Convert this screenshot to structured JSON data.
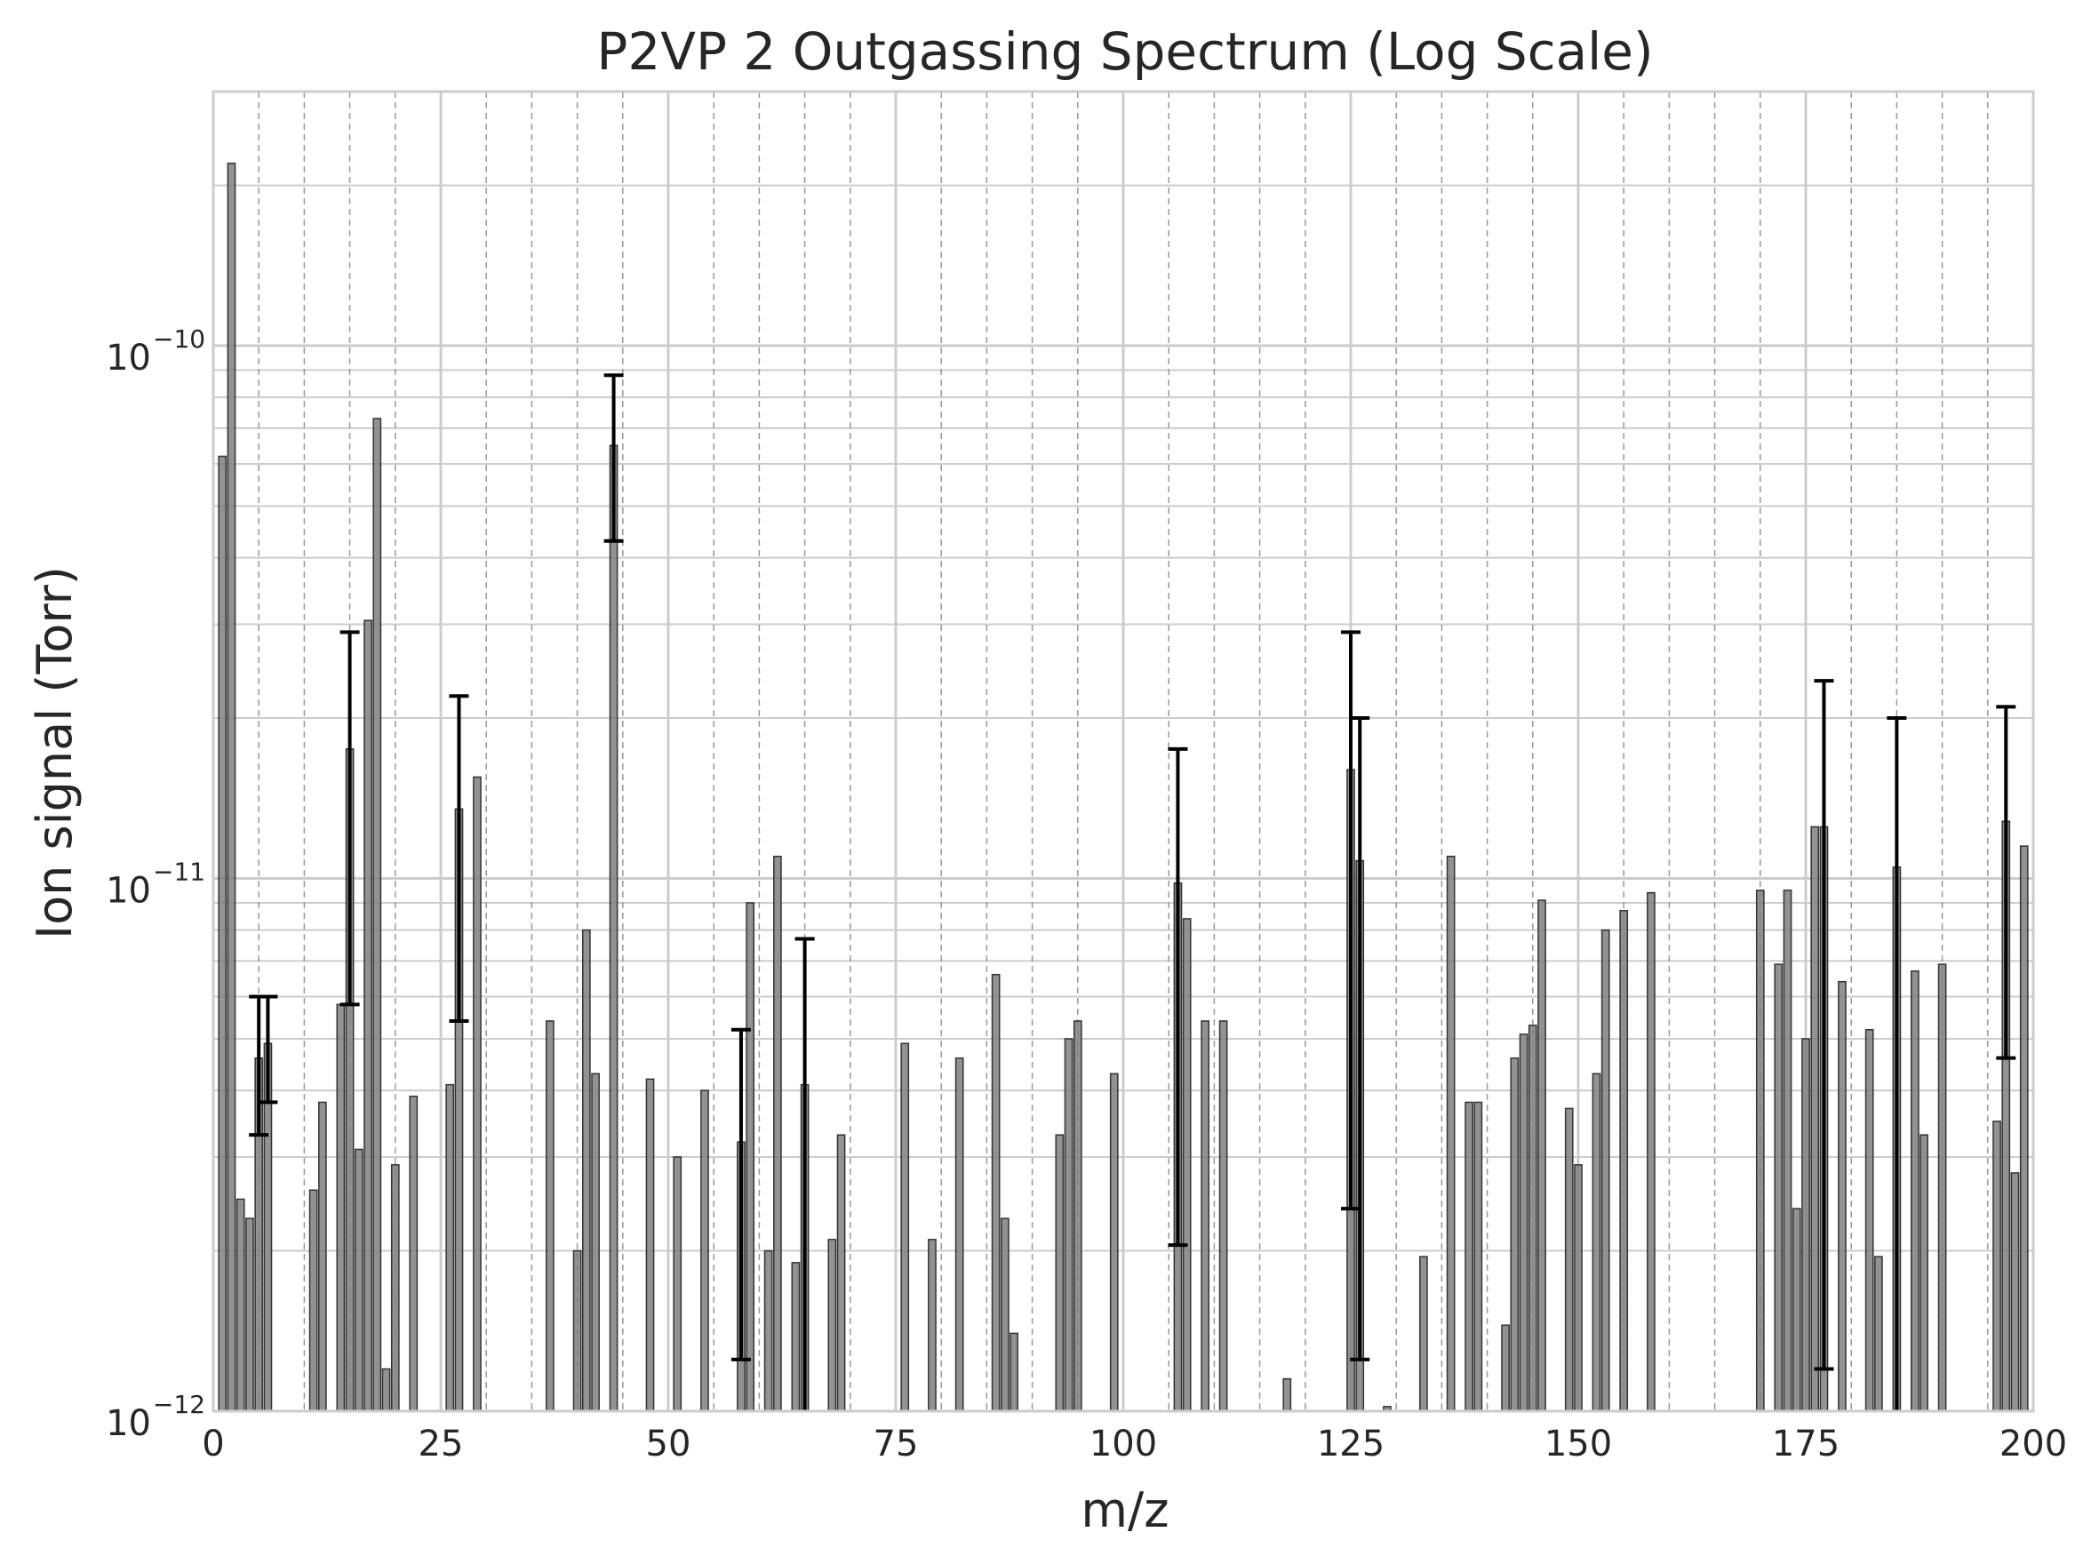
{
  "chart_data": {
    "type": "bar",
    "title": "P2VP 2 Outgassing Spectrum (Log Scale)",
    "xlabel": "m/z",
    "ylabel": "Ion signal (Torr)",
    "xlim": [
      0,
      200
    ],
    "ylim": [
      1e-12,
      3e-10
    ],
    "yscale": "log",
    "grid": true,
    "x_ticks": [
      0,
      25,
      50,
      75,
      100,
      125,
      150,
      175,
      200
    ],
    "y_ticks": [
      {
        "value": 1e-12,
        "base": "10",
        "exp": "−12"
      },
      {
        "value": 1e-11,
        "base": "10",
        "exp": "−11"
      },
      {
        "value": 1e-10,
        "base": "10",
        "exp": "−10"
      }
    ],
    "colors": {
      "bar": "#7f7f7f",
      "bar_edge": "#333333",
      "error_bar": "#000000",
      "grid": "#cccccc",
      "frame": "#cccccc"
    },
    "points": [
      {
        "x": 1,
        "y": 6.2e-11
      },
      {
        "x": 2,
        "y": 2.2e-10
      },
      {
        "x": 3,
        "y": 2.5e-12
      },
      {
        "x": 4,
        "y": 2.3e-12
      },
      {
        "x": 5,
        "y": 4.6e-12,
        "lo": 3.3e-12,
        "hi": 6e-12
      },
      {
        "x": 6,
        "y": 4.9e-12,
        "lo": 3.8e-12,
        "hi": 6e-12
      },
      {
        "x": 11,
        "y": 2.6e-12
      },
      {
        "x": 12,
        "y": 3.8e-12
      },
      {
        "x": 14,
        "y": 5.8e-12
      },
      {
        "x": 15,
        "y": 1.75e-11,
        "lo": 5.8e-12,
        "hi": 2.9e-11
      },
      {
        "x": 16,
        "y": 3.1e-12
      },
      {
        "x": 17,
        "y": 3.05e-11
      },
      {
        "x": 18,
        "y": 7.3e-11
      },
      {
        "x": 19,
        "y": 1.2e-12
      },
      {
        "x": 20,
        "y": 2.9e-12
      },
      {
        "x": 22,
        "y": 3.9e-12
      },
      {
        "x": 26,
        "y": 4.1e-12
      },
      {
        "x": 27,
        "y": 1.35e-11,
        "lo": 5.4e-12,
        "hi": 2.2e-11
      },
      {
        "x": 29,
        "y": 1.55e-11
      },
      {
        "x": 37,
        "y": 5.4e-12
      },
      {
        "x": 40,
        "y": 2e-12
      },
      {
        "x": 41,
        "y": 8e-12
      },
      {
        "x": 42,
        "y": 4.3e-12
      },
      {
        "x": 44,
        "y": 6.5e-11,
        "lo": 4.3e-11,
        "hi": 8.8e-11
      },
      {
        "x": 48,
        "y": 4.2e-12
      },
      {
        "x": 51,
        "y": 3e-12
      },
      {
        "x": 54,
        "y": 4e-12
      },
      {
        "x": 58,
        "y": 3.2e-12,
        "lo": 1.25e-12,
        "hi": 5.2e-12
      },
      {
        "x": 59,
        "y": 9e-12
      },
      {
        "x": 61,
        "y": 2e-12
      },
      {
        "x": 62,
        "y": 1.1e-11
      },
      {
        "x": 64,
        "y": 1.9e-12
      },
      {
        "x": 65,
        "y": 4.1e-12,
        "lo": 9e-13,
        "hi": 7.7e-12
      },
      {
        "x": 68,
        "y": 2.1e-12
      },
      {
        "x": 69,
        "y": 3.3e-12
      },
      {
        "x": 76,
        "y": 4.9e-12
      },
      {
        "x": 79,
        "y": 2.1e-12
      },
      {
        "x": 82,
        "y": 4.6e-12
      },
      {
        "x": 86,
        "y": 6.6e-12
      },
      {
        "x": 87,
        "y": 2.3e-12
      },
      {
        "x": 88,
        "y": 1.4e-12
      },
      {
        "x": 93,
        "y": 3.3e-12
      },
      {
        "x": 94,
        "y": 5e-12
      },
      {
        "x": 95,
        "y": 5.4e-12
      },
      {
        "x": 99,
        "y": 4.3e-12
      },
      {
        "x": 106,
        "y": 9.8e-12,
        "lo": 2.05e-12,
        "hi": 1.75e-11
      },
      {
        "x": 107,
        "y": 8.4e-12
      },
      {
        "x": 109,
        "y": 5.4e-12
      },
      {
        "x": 111,
        "y": 5.4e-12
      },
      {
        "x": 118,
        "y": 1.15e-12
      },
      {
        "x": 125,
        "y": 1.6e-11,
        "lo": 2.4e-12,
        "hi": 2.9e-11
      },
      {
        "x": 126,
        "y": 1.08e-11,
        "lo": 1.25e-12,
        "hi": 2e-11
      },
      {
        "x": 129,
        "y": 1.02e-12
      },
      {
        "x": 133,
        "y": 1.95e-12
      },
      {
        "x": 136,
        "y": 1.1e-11
      },
      {
        "x": 138,
        "y": 3.8e-12
      },
      {
        "x": 139,
        "y": 3.8e-12
      },
      {
        "x": 142,
        "y": 1.45e-12
      },
      {
        "x": 143,
        "y": 4.6e-12
      },
      {
        "x": 144,
        "y": 5.1e-12
      },
      {
        "x": 145,
        "y": 5.3e-12
      },
      {
        "x": 146,
        "y": 9.1e-12
      },
      {
        "x": 149,
        "y": 3.7e-12
      },
      {
        "x": 150,
        "y": 2.9e-12
      },
      {
        "x": 152,
        "y": 4.3e-12
      },
      {
        "x": 153,
        "y": 8e-12
      },
      {
        "x": 155,
        "y": 8.7e-12
      },
      {
        "x": 158,
        "y": 9.4e-12
      },
      {
        "x": 170,
        "y": 9.5e-12
      },
      {
        "x": 172,
        "y": 6.9e-12
      },
      {
        "x": 173,
        "y": 9.5e-12
      },
      {
        "x": 174,
        "y": 2.4e-12
      },
      {
        "x": 175,
        "y": 5e-12
      },
      {
        "x": 176,
        "y": 1.25e-11
      },
      {
        "x": 177,
        "y": 1.25e-11,
        "lo": 1.2e-12,
        "hi": 2.35e-11
      },
      {
        "x": 179,
        "y": 6.4e-12
      },
      {
        "x": 182,
        "y": 5.2e-12
      },
      {
        "x": 183,
        "y": 1.95e-12
      },
      {
        "x": 185,
        "y": 1.05e-11,
        "lo": 9e-13,
        "hi": 2e-11
      },
      {
        "x": 187,
        "y": 6.7e-12
      },
      {
        "x": 188,
        "y": 3.3e-12
      },
      {
        "x": 190,
        "y": 6.9e-12
      },
      {
        "x": 196,
        "y": 3.5e-12
      },
      {
        "x": 197,
        "y": 1.28e-11,
        "lo": 4.6e-12,
        "hi": 2.1e-11
      },
      {
        "x": 198,
        "y": 2.8e-12
      },
      {
        "x": 199,
        "y": 1.15e-11
      }
    ]
  }
}
